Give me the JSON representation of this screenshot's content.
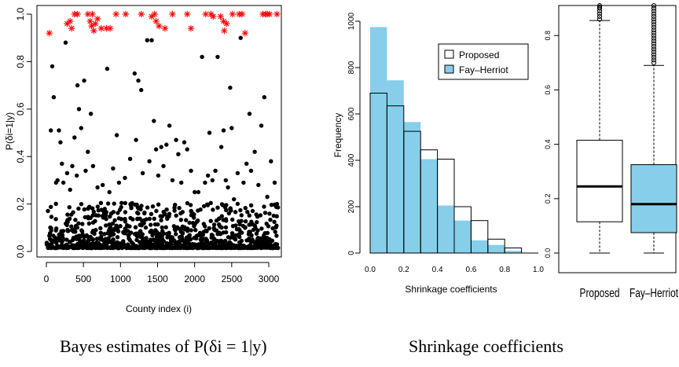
{
  "captions": {
    "left": "Bayes estimates of P(δi = 1|y)",
    "right": "Shrinkage coefficients"
  },
  "chart_data": [
    {
      "type": "scatter",
      "title": "",
      "xlabel": "County index (i)",
      "ylabel": "P(δi=1|y)",
      "xlim": [
        0,
        3141
      ],
      "ylim": [
        0,
        1
      ],
      "xticks": [
        "0",
        "500",
        "1000",
        "1500",
        "2000",
        "2500",
        "3000"
      ],
      "yticks": [
        "0.0",
        "0.2",
        "0.4",
        "0.6",
        "0.8",
        "1.0"
      ],
      "series": [
        {
          "marker": "dot",
          "color": "#000000",
          "points": [
            [
              60,
              0.51
            ],
            [
              80,
              0.78
            ],
            [
              100,
              0.65
            ],
            [
              130,
              0.29
            ],
            [
              150,
              0.3
            ],
            [
              170,
              0.51
            ],
            [
              190,
              0.46
            ],
            [
              210,
              0.37
            ],
            [
              230,
              0.29
            ],
            [
              260,
              0.88
            ],
            [
              280,
              0.33
            ],
            [
              320,
              0.26
            ],
            [
              350,
              0.36
            ],
            [
              380,
              0.48
            ],
            [
              410,
              0.32
            ],
            [
              420,
              0.7
            ],
            [
              440,
              0.6
            ],
            [
              470,
              0.52
            ],
            [
              510,
              0.72
            ],
            [
              530,
              0.34
            ],
            [
              560,
              0.42
            ],
            [
              600,
              0.58
            ],
            [
              630,
              0.36
            ],
            [
              690,
              0.27
            ],
            [
              760,
              0.28
            ],
            [
              820,
              0.77
            ],
            [
              850,
              0.25
            ],
            [
              900,
              0.35
            ],
            [
              950,
              0.49
            ],
            [
              980,
              0.29
            ],
            [
              1060,
              0.31
            ],
            [
              1130,
              0.39
            ],
            [
              1190,
              0.75
            ],
            [
              1210,
              0.47
            ],
            [
              1240,
              0.72
            ],
            [
              1280,
              0.68
            ],
            [
              1300,
              0.33
            ],
            [
              1360,
              0.89
            ],
            [
              1390,
              0.38
            ],
            [
              1420,
              0.89
            ],
            [
              1450,
              0.55
            ],
            [
              1480,
              0.43
            ],
            [
              1510,
              0.32
            ],
            [
              1550,
              0.44
            ],
            [
              1580,
              0.36
            ],
            [
              1620,
              0.45
            ],
            [
              1660,
              0.53
            ],
            [
              1700,
              0.3
            ],
            [
              1750,
              0.47
            ],
            [
              1780,
              0.41
            ],
            [
              1820,
              0.29
            ],
            [
              1860,
              0.46
            ],
            [
              1900,
              0.43
            ],
            [
              1950,
              0.34
            ],
            [
              2000,
              0.25
            ],
            [
              2050,
              0.25
            ],
            [
              2100,
              0.82
            ],
            [
              2140,
              0.29
            ],
            [
              2180,
              0.32
            ],
            [
              2200,
              0.5
            ],
            [
              2240,
              0.3
            ],
            [
              2280,
              0.34
            ],
            [
              2310,
              0.82
            ],
            [
              2360,
              0.44
            ],
            [
              2390,
              0.51
            ],
            [
              2420,
              0.3
            ],
            [
              2450,
              0.27
            ],
            [
              2480,
              0.69
            ],
            [
              2500,
              0.52
            ],
            [
              2530,
              0.22
            ],
            [
              2580,
              0.33
            ],
            [
              2620,
              0.9
            ],
            [
              2660,
              0.29
            ],
            [
              2700,
              0.37
            ],
            [
              2740,
              0.58
            ],
            [
              2760,
              0.34
            ],
            [
              2810,
              0.42
            ],
            [
              2860,
              0.28
            ],
            [
              2900,
              0.53
            ],
            [
              2940,
              0.65
            ],
            [
              2980,
              0.23
            ],
            [
              3030,
              0.38
            ],
            [
              3080,
              0.29
            ],
            [
              3110,
              0.2
            ]
          ]
        },
        {
          "marker": "asterisk",
          "color": "#ff0000",
          "points": [
            [
              40,
              0.92
            ],
            [
              280,
              0.96
            ],
            [
              320,
              0.97
            ],
            [
              340,
              0.94
            ],
            [
              380,
              1.0
            ],
            [
              420,
              1.0
            ],
            [
              560,
              1.0
            ],
            [
              590,
              0.97
            ],
            [
              610,
              0.95
            ],
            [
              620,
              1.0
            ],
            [
              640,
              0.93
            ],
            [
              660,
              0.96
            ],
            [
              690,
              0.98
            ],
            [
              740,
              0.94
            ],
            [
              810,
              0.94
            ],
            [
              860,
              0.94
            ],
            [
              940,
              1.0
            ],
            [
              1070,
              1.0
            ],
            [
              1280,
              1.0
            ],
            [
              1420,
              0.99
            ],
            [
              1460,
              1.0
            ],
            [
              1480,
              0.97
            ],
            [
              1520,
              0.95
            ],
            [
              1600,
              0.94
            ],
            [
              1700,
              1.0
            ],
            [
              1900,
              1.0
            ],
            [
              1950,
              0.94
            ],
            [
              2150,
              1.0
            ],
            [
              2220,
              1.0
            ],
            [
              2250,
              0.99
            ],
            [
              2350,
              0.99
            ],
            [
              2390,
              0.97
            ],
            [
              2400,
              0.93
            ],
            [
              2430,
              0.96
            ],
            [
              2510,
              1.0
            ],
            [
              2600,
              1.0
            ],
            [
              2640,
              1.0
            ],
            [
              2680,
              0.92
            ],
            [
              2920,
              1.0
            ],
            [
              2960,
              1.0
            ],
            [
              2980,
              1.0
            ],
            [
              3010,
              1.0
            ],
            [
              3110,
              1.0
            ]
          ]
        }
      ]
    },
    {
      "type": "bar",
      "title": "",
      "xlabel": "Shrinkage coefficients",
      "ylabel": "Frequency",
      "xlim": [
        0,
        1
      ],
      "ylim": [
        0,
        1000
      ],
      "xticks": [
        "0.0",
        "0.2",
        "0.4",
        "0.6",
        "0.8",
        "1.0"
      ],
      "yticks": [
        "0",
        "200",
        "400",
        "600",
        "800",
        "1000"
      ],
      "bin_edges": [
        0,
        0.1,
        0.2,
        0.3,
        0.4,
        0.5,
        0.6,
        0.7,
        0.8,
        0.9,
        1.0
      ],
      "legend_position": "top-right",
      "series": [
        {
          "name": "Proposed",
          "color": "#ffffff",
          "values": [
            690,
            635,
            525,
            445,
            405,
            200,
            140,
            60,
            22,
            0
          ]
        },
        {
          "name": "Fay–Herriot",
          "color": "#87ceeb",
          "values": [
            975,
            745,
            565,
            405,
            205,
            140,
            55,
            35,
            10,
            0
          ]
        }
      ]
    },
    {
      "type": "box",
      "title": "",
      "categories": [
        "Proposed",
        "Fay–Herriot"
      ],
      "ylim": [
        0,
        0.93
      ],
      "yticks": [
        "0.0",
        "0.2",
        "0.4",
        "0.6",
        "0.8"
      ],
      "colors": [
        "#ffffff",
        "#87ceeb"
      ],
      "boxes": [
        {
          "min": 0.0,
          "q1": 0.115,
          "median": 0.245,
          "q3": 0.415,
          "max": 0.855,
          "outliers": [
            0.86,
            0.87,
            0.88,
            0.89,
            0.9,
            0.905,
            0.91
          ]
        },
        {
          "min": 0.0,
          "q1": 0.075,
          "median": 0.18,
          "q3": 0.325,
          "max": 0.69,
          "outliers": [
            0.7,
            0.71,
            0.72,
            0.73,
            0.74,
            0.75,
            0.76,
            0.77,
            0.78,
            0.79,
            0.8,
            0.81,
            0.82,
            0.83,
            0.84,
            0.85,
            0.86,
            0.87,
            0.88,
            0.89,
            0.9,
            0.91
          ]
        }
      ]
    }
  ]
}
